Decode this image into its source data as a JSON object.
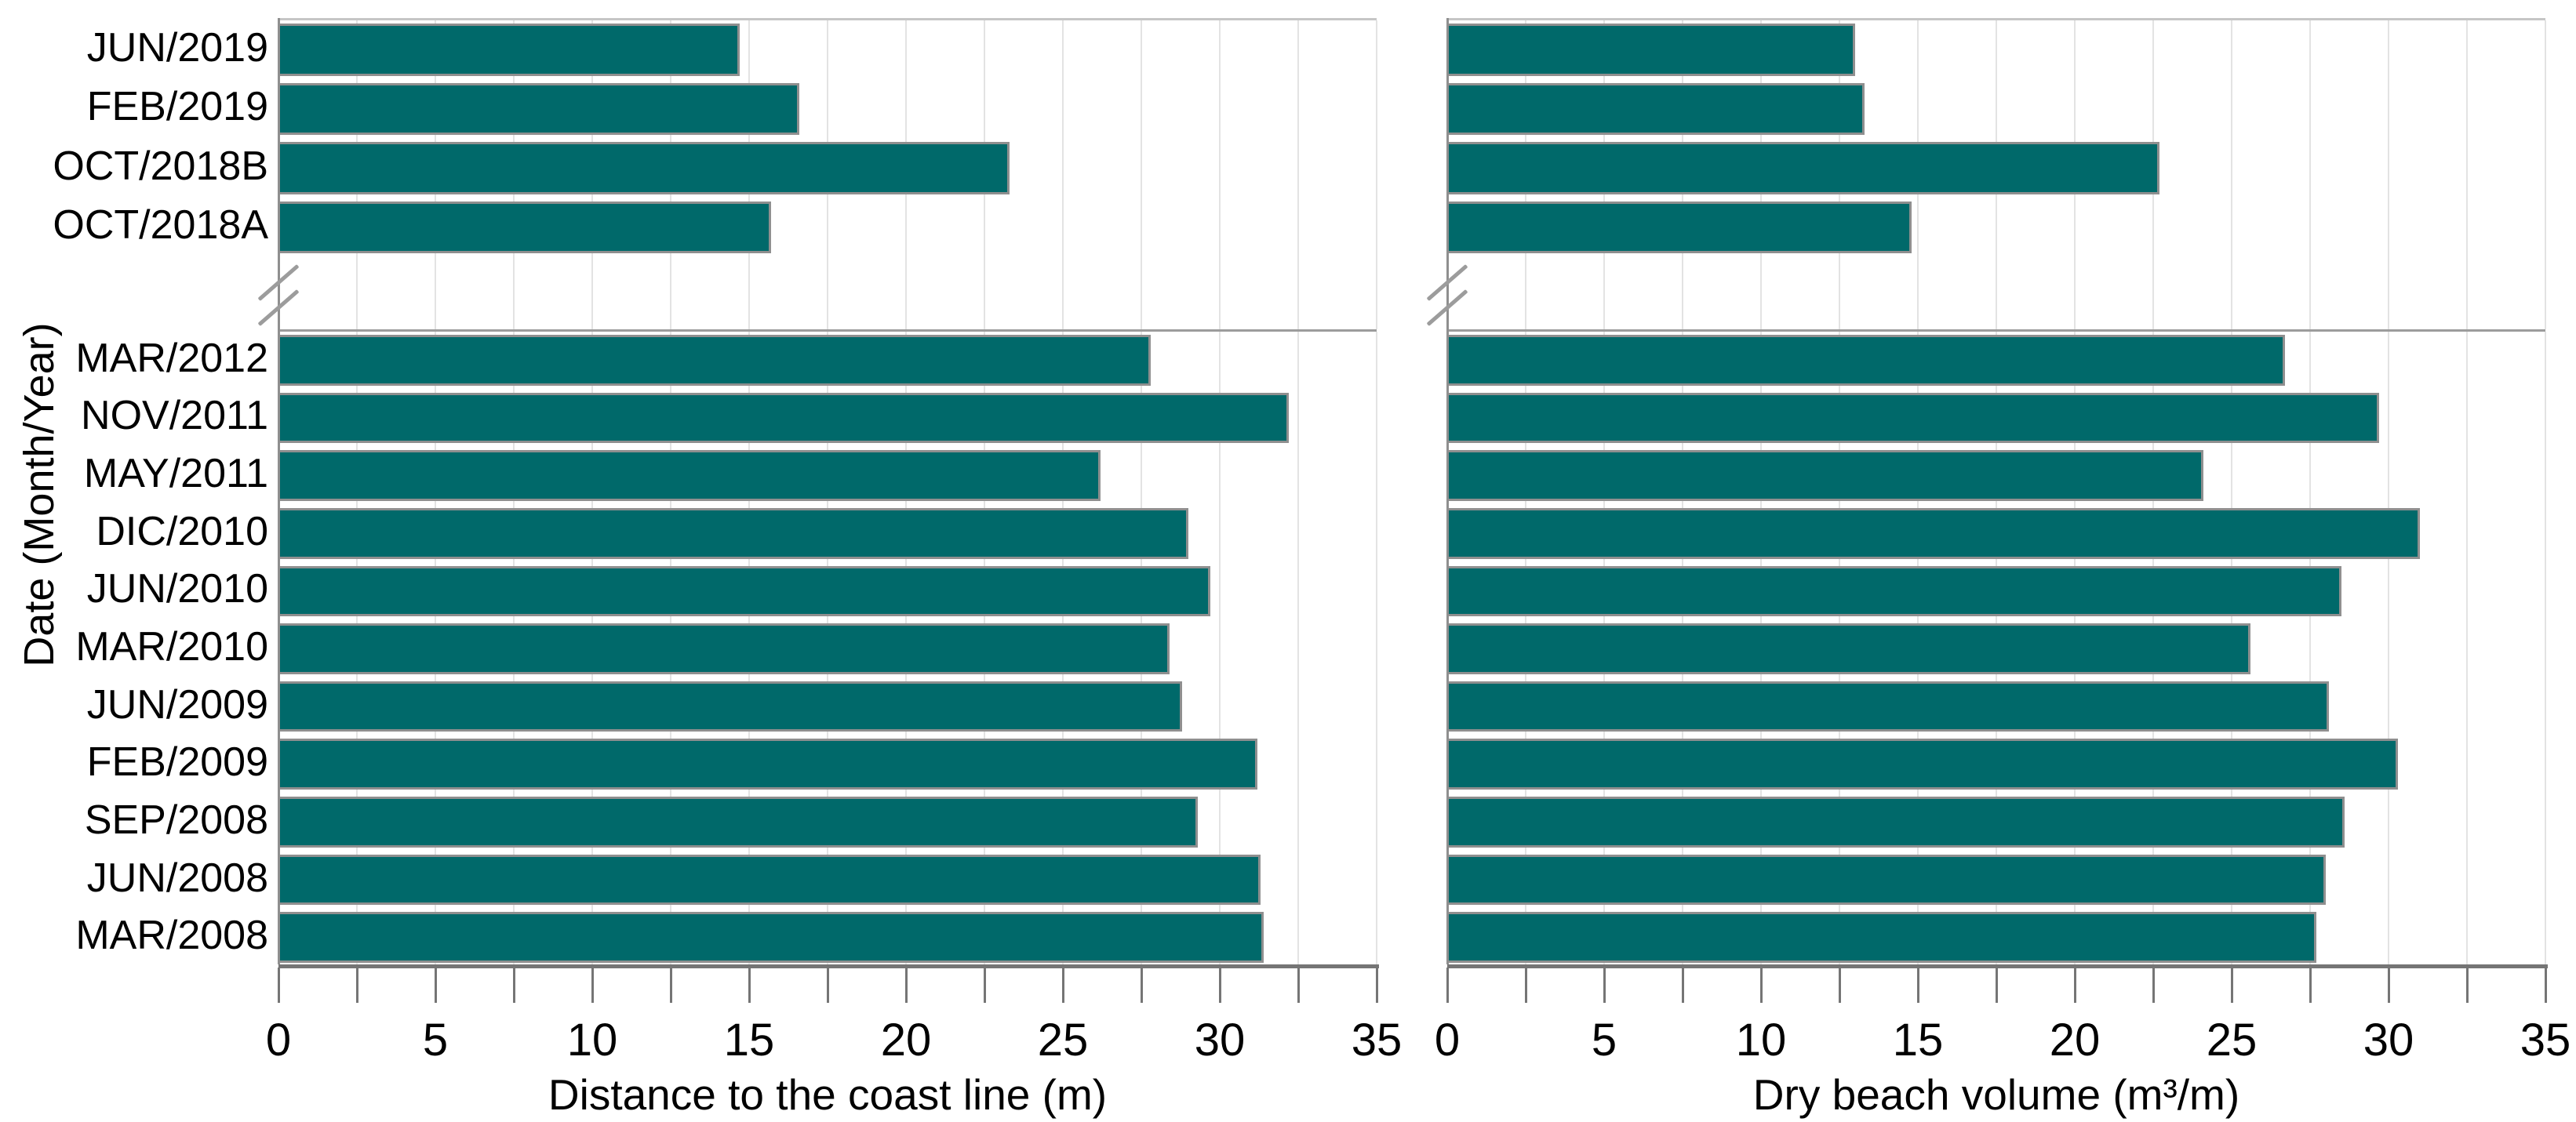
{
  "figure": {
    "ylabel": "Date (Month/Year)"
  },
  "colors": {
    "bar_fill": "#00696a",
    "bar_border": "#8f8f8f",
    "gridline": "#e3e3e3",
    "axis": "#757575",
    "panel_line": "#9c9c9c",
    "panel_top_line": "#c6c6c6",
    "break_mark": "#9c9c9c",
    "text": "#000000"
  },
  "chart_data": [
    {
      "type": "bar",
      "orientation": "horizontal",
      "title": "",
      "xlabel": "Distance to the coast line (m)",
      "ylabel": "Date (Month/Year)",
      "xlim": [
        0,
        35
      ],
      "xticks": [
        0,
        5,
        10,
        15,
        20,
        25,
        30,
        35
      ],
      "minor_tick_step": 2.5,
      "grid": "vertical-minor",
      "legend": "none",
      "axis_break_between": [
        "OCT/2018A",
        "MAR/2012"
      ],
      "groups": [
        {
          "categories": [
            "JUN/2019",
            "FEB/2019",
            "OCT/2018B",
            "OCT/2018A"
          ],
          "values": [
            14.7,
            16.6,
            23.3,
            15.7
          ]
        },
        {
          "categories": [
            "MAR/2012",
            "NOV/2011",
            "MAY/2011",
            "DIC/2010",
            "JUN/2010",
            "MAR/2010",
            "JUN/2009",
            "FEB/2009",
            "SEP/2008",
            "JUN/2008",
            "MAR/2008"
          ],
          "values": [
            27.8,
            32.2,
            26.2,
            29.0,
            29.7,
            28.4,
            28.8,
            31.2,
            29.3,
            31.3,
            31.4
          ]
        }
      ]
    },
    {
      "type": "bar",
      "orientation": "horizontal",
      "title": "",
      "xlabel": "Dry beach volume (m³/m)",
      "ylabel": "Date (Month/Year)",
      "xlim": [
        0,
        35
      ],
      "xticks": [
        0,
        5,
        10,
        15,
        20,
        25,
        30,
        35
      ],
      "minor_tick_step": 2.5,
      "grid": "vertical-minor",
      "legend": "none",
      "axis_break_between": [
        "OCT/2018A",
        "MAR/2012"
      ],
      "groups": [
        {
          "categories": [
            "JUN/2019",
            "FEB/2019",
            "OCT/2018B",
            "OCT/2018A"
          ],
          "values": [
            13.0,
            13.3,
            22.7,
            14.8
          ]
        },
        {
          "categories": [
            "MAR/2012",
            "NOV/2011",
            "MAY/2011",
            "DIC/2010",
            "JUN/2010",
            "MAR/2010",
            "JUN/2009",
            "FEB/2009",
            "SEP/2008",
            "JUN/2008",
            "MAR/2008"
          ],
          "values": [
            26.7,
            29.7,
            24.1,
            31.0,
            28.5,
            25.6,
            28.1,
            30.3,
            28.6,
            28.0,
            27.7
          ]
        }
      ]
    }
  ]
}
